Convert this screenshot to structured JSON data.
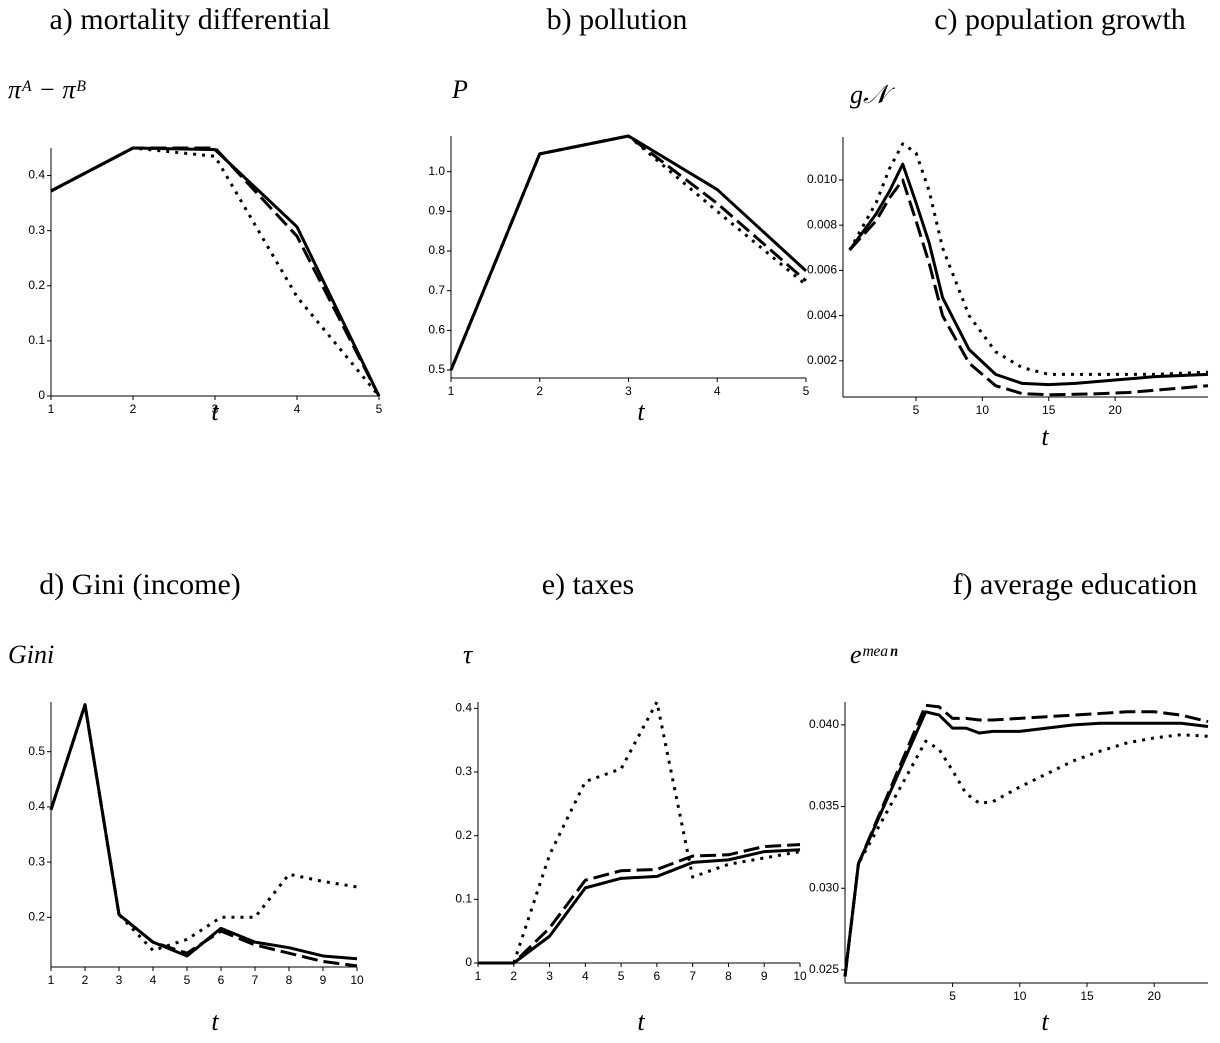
{
  "chart_data": [
    {
      "type": "line",
      "title": "a) mortality differential",
      "ylabel": "πᴬ − πᴮ",
      "xlabel": "t",
      "x": [
        1,
        2,
        3,
        4,
        5
      ],
      "xlim": [
        1,
        5
      ],
      "xticks": [
        1,
        2,
        3,
        4,
        5
      ],
      "ylim": [
        0,
        0.45
      ],
      "yticks": [
        0,
        0.1,
        0.2,
        0.3,
        0.4
      ],
      "series": [
        {
          "style": "solid",
          "color": "#000000",
          "values": [
            0.372,
            0.45,
            0.447,
            0.307,
            0
          ]
        },
        {
          "style": "dashed",
          "color": "#000000",
          "values": [
            0.372,
            0.45,
            0.45,
            0.29,
            0
          ]
        },
        {
          "style": "dotted",
          "color": "#000000",
          "values": [
            0.372,
            0.45,
            0.435,
            0.18,
            0
          ]
        }
      ]
    },
    {
      "type": "line",
      "title": "b) pollution",
      "ylabel": "P",
      "xlabel": "t",
      "x": [
        1,
        2,
        3,
        4,
        5
      ],
      "xlim": [
        1,
        5
      ],
      "xticks": [
        1,
        2,
        3,
        4,
        5
      ],
      "ylim": [
        0.48,
        1.09
      ],
      "yticks": [
        0.5,
        0.6,
        0.7,
        0.8,
        0.9,
        {
          "value": 1,
          "label": "1.0"
        }
      ],
      "series": [
        {
          "style": "solid",
          "color": "#000000",
          "values": [
            0.5,
            1.045,
            1.09,
            0.955,
            0.75
          ]
        },
        {
          "style": "dashed",
          "color": "#000000",
          "values": [
            0.5,
            1.045,
            1.09,
            0.92,
            0.725
          ]
        },
        {
          "style": "dotted",
          "color": "#000000",
          "values": [
            0.5,
            1.045,
            1.09,
            0.9,
            0.715
          ]
        }
      ]
    },
    {
      "type": "line",
      "title": "c) population growth",
      "ylabel": "g𝒩",
      "xlabel": "t",
      "x": [
        0,
        2,
        3,
        4,
        5,
        6,
        7,
        9,
        11,
        13,
        15,
        17,
        19,
        21,
        23,
        25,
        27
      ],
      "xlim": [
        -0.5,
        27
      ],
      "xticks": [
        5,
        10,
        15,
        20
      ],
      "ylim": [
        0.0004,
        0.0119
      ],
      "yticks": [
        0.002,
        0.004,
        0.006,
        0.008,
        {
          "value": 0.01,
          "label": "0.010"
        }
      ],
      "series": [
        {
          "style": "solid",
          "color": "#000000",
          "values": [
            0.0069,
            0.0085,
            0.0095,
            0.0107,
            0.009,
            0.0072,
            0.0048,
            0.0025,
            0.0014,
            0.001,
            0.00095,
            0.001,
            0.0011,
            0.0012,
            0.0013,
            0.00135,
            0.0014
          ]
        },
        {
          "style": "dashed",
          "color": "#000000",
          "values": [
            0.0069,
            0.0082,
            0.0092,
            0.01,
            0.0082,
            0.0063,
            0.004,
            0.0019,
            0.0009,
            0.00055,
            0.0005,
            0.00052,
            0.00055,
            0.0006,
            0.0007,
            0.0008,
            0.0009
          ]
        },
        {
          "style": "dotted",
          "color": "#000000",
          "values": [
            0.0069,
            0.009,
            0.0105,
            0.0116,
            0.0112,
            0.0095,
            0.007,
            0.004,
            0.0024,
            0.0017,
            0.0014,
            0.0014,
            0.0014,
            0.0014,
            0.0014,
            0.00145,
            0.0015
          ]
        }
      ]
    },
    {
      "type": "line",
      "title": "d) Gini (income)",
      "ylabel": "Gini",
      "xlabel": "t",
      "x": [
        1,
        2,
        3,
        4,
        5,
        6,
        7,
        8,
        9,
        10
      ],
      "xlim": [
        1,
        10
      ],
      "xticks": [
        1,
        2,
        3,
        4,
        5,
        6,
        7,
        8,
        9,
        10
      ],
      "ylim": [
        0.11,
        0.59
      ],
      "yticks": [
        0.2,
        0.3,
        0.4,
        0.5
      ],
      "series": [
        {
          "style": "solid",
          "color": "#000000",
          "values": [
            0.395,
            0.585,
            0.205,
            0.155,
            0.13,
            0.18,
            0.155,
            0.145,
            0.13,
            0.125
          ]
        },
        {
          "style": "dashed",
          "color": "#000000",
          "values": [
            0.395,
            0.585,
            0.205,
            0.155,
            0.135,
            0.175,
            0.15,
            0.135,
            0.12,
            0.112
          ]
        },
        {
          "style": "dotted",
          "color": "#000000",
          "values": [
            0.395,
            0.585,
            0.205,
            0.14,
            0.16,
            0.2,
            0.2,
            0.278,
            0.265,
            0.255
          ]
        }
      ]
    },
    {
      "type": "line",
      "title": "e) taxes",
      "ylabel": "τ",
      "xlabel": "t",
      "x": [
        1,
        2,
        3,
        4,
        5,
        6,
        7,
        8,
        9,
        10
      ],
      "xlim": [
        1,
        10
      ],
      "xticks": [
        1,
        2,
        3,
        4,
        5,
        6,
        7,
        8,
        9,
        10
      ],
      "ylim": [
        0,
        0.41
      ],
      "yticks": [
        0,
        0.1,
        0.2,
        0.3,
        0.4
      ],
      "series": [
        {
          "style": "solid",
          "color": "#000000",
          "values": [
            0,
            0,
            0.042,
            0.118,
            0.133,
            0.136,
            0.158,
            0.162,
            0.175,
            0.178
          ]
        },
        {
          "style": "dashed",
          "color": "#000000",
          "values": [
            0,
            0,
            0.055,
            0.13,
            0.145,
            0.147,
            0.168,
            0.17,
            0.183,
            0.186
          ]
        },
        {
          "style": "dotted",
          "color": "#000000",
          "values": [
            0,
            0,
            0.17,
            0.285,
            0.305,
            0.41,
            0.135,
            0.155,
            0.165,
            0.175
          ]
        }
      ]
    },
    {
      "type": "line",
      "title": "f) average education",
      "ylabel": "eᵐᵉᵃⁿ",
      "xlabel": "t",
      "x": [
        -3,
        -2,
        3,
        4,
        5,
        6,
        7,
        8,
        10,
        12,
        14,
        16,
        18,
        20,
        22,
        24
      ],
      "xlim": [
        -3,
        24
      ],
      "xticks": [
        5,
        10,
        15,
        20
      ],
      "ylim": [
        0.0242,
        0.0414
      ],
      "yticks": [
        0.025,
        {
          "value": 0.03,
          "label": "0.030"
        },
        0.035,
        {
          "value": 0.04,
          "label": "0.040"
        }
      ],
      "series": [
        {
          "style": "solid",
          "color": "#000000",
          "values": [
            0.0246,
            0.0315,
            0.0408,
            0.0406,
            0.0398,
            0.0398,
            0.0395,
            0.0396,
            0.0396,
            0.0398,
            0.04,
            0.0401,
            0.0401,
            0.0401,
            0.0401,
            0.0399
          ]
        },
        {
          "style": "dashed",
          "color": "#000000",
          "values": [
            0.0246,
            0.0315,
            0.0412,
            0.0411,
            0.0404,
            0.0404,
            0.0403,
            0.0403,
            0.0404,
            0.0405,
            0.0406,
            0.0407,
            0.0408,
            0.0408,
            0.0406,
            0.0402
          ]
        },
        {
          "style": "dotted",
          "color": "#000000",
          "values": [
            0.0246,
            0.0315,
            0.039,
            0.0385,
            0.0372,
            0.0358,
            0.0352,
            0.0353,
            0.0362,
            0.037,
            0.0378,
            0.0384,
            0.0389,
            0.0392,
            0.0394,
            0.0393
          ]
        }
      ]
    }
  ]
}
